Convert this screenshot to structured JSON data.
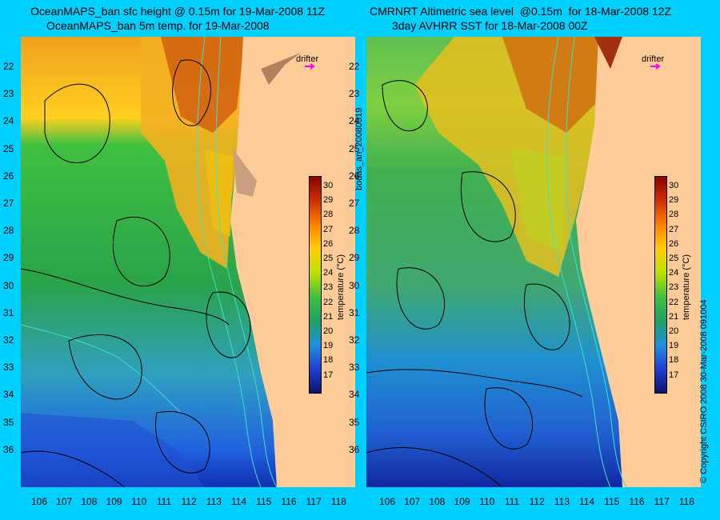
{
  "left_panel": {
    "title_line1": "OceanMAPS_ban sfc height @ 0.15m for 19-Mar-2008 11Z",
    "title_line2": "OceanMAPS_ban 5m temp. for 19-Mar-2008",
    "drifter_label": "drifter"
  },
  "right_panel": {
    "title_line1": "CMRNRT Altimetric sea level  @0.15m  for 18-Mar-2008 12Z",
    "title_line2": "3day AVHRR SST for 18-Mar-2008 00Z",
    "drifter_label": "drifter"
  },
  "latitude_labels": [
    "22",
    "23",
    "24",
    "25",
    "26",
    "27",
    "28",
    "29",
    "30",
    "31",
    "32",
    "33",
    "34",
    "35",
    "36"
  ],
  "longitude_labels": [
    "106",
    "107",
    "108",
    "109",
    "110",
    "111",
    "112",
    "113",
    "114",
    "115",
    "116",
    "117",
    "118"
  ],
  "colorbar": {
    "ticks": [
      "30",
      "29",
      "28",
      "27",
      "26",
      "25",
      "24",
      "23",
      "22",
      "21",
      "20",
      "19",
      "18",
      "17"
    ],
    "label": "temperature (°C)"
  },
  "side_labels": {
    "analysis_tag": "bodas_an_20080319",
    "copyright": "© Copyright CSIRO 2008   30-Mar-2008 091004"
  },
  "colors": {
    "background": "#00d0ff",
    "land": "#ffcc99",
    "contour_ssh": "#000000",
    "contour_bathymetry": "#40e0d0",
    "drifter": "#ff00ff"
  }
}
